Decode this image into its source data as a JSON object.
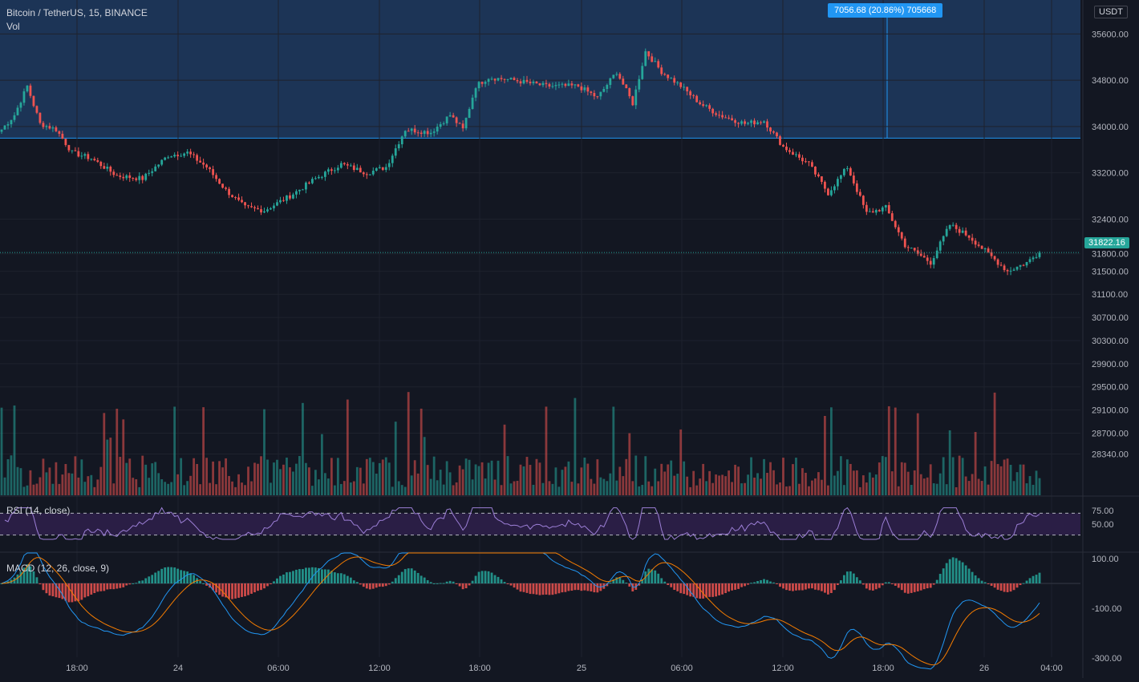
{
  "header": {
    "symbol_line": "Bitcoin / TetherUS, 15, BINANCE",
    "volume_label": "Vol"
  },
  "price_axis": {
    "currency_tag": "USDT",
    "current_price_tag": "31822.16"
  },
  "measure_tooltip": "7056.68 (20.86%) 705668",
  "rsi": {
    "label": "RSI (14, close)"
  },
  "macd": {
    "label": "MACD (12, 26, close, 9)"
  },
  "colors": {
    "background": "#131722",
    "bull": "#26a69a",
    "bear": "#ef5350",
    "measure_fill": "#1e3a5f",
    "measure_line": "#2196f3",
    "rsi_band": "#2a1e45",
    "rsi_line": "#9c7fd6",
    "macd_line": "#2196f3",
    "signal_line": "#f57c00",
    "grid": "#1e222d",
    "text": "#d1d4dc",
    "axis_text": "#b2b5be"
  },
  "chart_data": [
    {
      "type": "candlestick",
      "title": "Bitcoin / TetherUS, 15, BINANCE",
      "y_ticks": [
        35600,
        34800,
        34000,
        33200,
        32400,
        31800,
        31500,
        31100,
        30700,
        30300,
        29900,
        29500,
        29100,
        28700,
        28340
      ],
      "y_range": [
        28000,
        35800
      ],
      "x_ticks": [
        "18:00",
        "24",
        "06:00",
        "12:00",
        "18:00",
        "25",
        "06:00",
        "12:00",
        "18:00",
        "26",
        "04:00"
      ],
      "current_price": 31822.16,
      "measure_range": {
        "from": 33800,
        "to": 35900,
        "text": "7056.68 (20.86%) 705668"
      },
      "anchors": [
        {
          "i": 0,
          "p": 33950
        },
        {
          "i": 4,
          "p": 34200
        },
        {
          "i": 8,
          "p": 34700
        },
        {
          "i": 12,
          "p": 34050
        },
        {
          "i": 17,
          "p": 33950
        },
        {
          "i": 22,
          "p": 33550
        },
        {
          "i": 28,
          "p": 33450
        },
        {
          "i": 36,
          "p": 33150
        },
        {
          "i": 44,
          "p": 33100
        },
        {
          "i": 52,
          "p": 33500
        },
        {
          "i": 58,
          "p": 33550
        },
        {
          "i": 64,
          "p": 33300
        },
        {
          "i": 70,
          "p": 32900
        },
        {
          "i": 76,
          "p": 32600
        },
        {
          "i": 82,
          "p": 32550
        },
        {
          "i": 90,
          "p": 32800
        },
        {
          "i": 98,
          "p": 33100
        },
        {
          "i": 106,
          "p": 33350
        },
        {
          "i": 114,
          "p": 33200
        },
        {
          "i": 120,
          "p": 33300
        },
        {
          "i": 126,
          "p": 33950
        },
        {
          "i": 134,
          "p": 33900
        },
        {
          "i": 140,
          "p": 34200
        },
        {
          "i": 144,
          "p": 33950
        },
        {
          "i": 148,
          "p": 34700
        },
        {
          "i": 152,
          "p": 34850
        },
        {
          "i": 160,
          "p": 34800
        },
        {
          "i": 170,
          "p": 34700
        },
        {
          "i": 180,
          "p": 34700
        },
        {
          "i": 186,
          "p": 34500
        },
        {
          "i": 192,
          "p": 34950
        },
        {
          "i": 197,
          "p": 34400
        },
        {
          "i": 201,
          "p": 35300
        },
        {
          "i": 206,
          "p": 34950
        },
        {
          "i": 212,
          "p": 34700
        },
        {
          "i": 218,
          "p": 34400
        },
        {
          "i": 224,
          "p": 34200
        },
        {
          "i": 232,
          "p": 34050
        },
        {
          "i": 238,
          "p": 34100
        },
        {
          "i": 244,
          "p": 33650
        },
        {
          "i": 252,
          "p": 33350
        },
        {
          "i": 258,
          "p": 32850
        },
        {
          "i": 264,
          "p": 33300
        },
        {
          "i": 270,
          "p": 32500
        },
        {
          "i": 276,
          "p": 32600
        },
        {
          "i": 282,
          "p": 31950
        },
        {
          "i": 290,
          "p": 31650
        },
        {
          "i": 296,
          "p": 32300
        },
        {
          "i": 302,
          "p": 32100
        },
        {
          "i": 308,
          "p": 31800
        },
        {
          "i": 314,
          "p": 31500
        },
        {
          "i": 320,
          "p": 31650
        },
        {
          "i": 324,
          "p": 31822.16
        }
      ],
      "rsi": {
        "y_ticks": [
          75,
          50
        ],
        "upper": 70,
        "lower": 30
      },
      "macd": {
        "y_ticks": [
          100,
          -100,
          -300
        ]
      }
    }
  ]
}
